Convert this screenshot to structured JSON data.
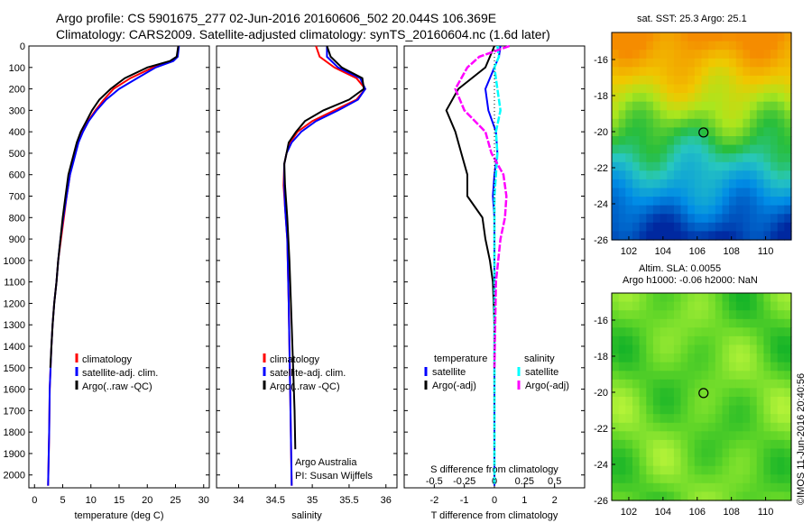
{
  "header": {
    "line1": "Argo profile: CS 5901675_277 02-Jun-2016 20160606_502 20.044S 106.369E",
    "line2": "Climatology: CARS2009. Satellite-adjusted climatology: synTS_20160604.nc (1.6d later)"
  },
  "colors": {
    "climatology": "#ff0000",
    "satellite": "#0000ff",
    "argo": "#000000",
    "satellite_s": "#00ffff",
    "argo_s": "#ff00ff"
  },
  "chart_data": [
    {
      "type": "line",
      "name": "temperature-profile",
      "xlabel": "temperature (deg C)",
      "xlim": [
        -1,
        31
      ],
      "ylim": [
        0,
        2060
      ],
      "xticks": [
        "0",
        "5",
        "10",
        "15",
        "20",
        "25",
        "30"
      ],
      "yticks": [
        "0",
        "100",
        "200",
        "300",
        "400",
        "500",
        "600",
        "700",
        "800",
        "900",
        "1000",
        "1100",
        "1200",
        "1300",
        "1400",
        "1500",
        "1600",
        "1700",
        "1800",
        "1900",
        "2000"
      ],
      "legend": [
        "climatology",
        "satellite-adj. clim.",
        "Argo(..raw -QC)"
      ],
      "series": [
        {
          "name": "climatology",
          "x": [
            25.5,
            25.3,
            24.5,
            21,
            17,
            14,
            12.3,
            10.8,
            9.5,
            8.5,
            7.7,
            7.2,
            6.7,
            6.3,
            5.7,
            5.2,
            4.7,
            4.2,
            3.9,
            3.5,
            3.2,
            3.0,
            2.7,
            2.6,
            2.4
          ],
          "y": [
            0,
            50,
            70,
            100,
            150,
            200,
            250,
            300,
            350,
            400,
            450,
            500,
            550,
            600,
            700,
            800,
            900,
            1000,
            1100,
            1200,
            1300,
            1400,
            1600,
            1800,
            2050
          ]
        },
        {
          "name": "satellite-adj. clim.",
          "x": [
            25.6,
            25.4,
            24.6,
            21.5,
            18.2,
            15,
            12.7,
            11,
            9.6,
            8.6,
            7.8,
            7.3,
            6.8,
            6.3,
            5.7,
            5.1,
            4.6,
            4.2,
            3.9,
            3.5,
            3.2,
            3.0,
            2.7,
            2.6,
            2.4
          ],
          "y": [
            0,
            50,
            70,
            100,
            150,
            200,
            250,
            300,
            350,
            400,
            450,
            500,
            550,
            600,
            700,
            800,
            900,
            1000,
            1100,
            1200,
            1300,
            1400,
            1600,
            1800,
            2050
          ]
        },
        {
          "name": "Argo(..raw -QC)",
          "x": [
            25.5,
            25.2,
            24,
            20,
            16,
            13.5,
            11.5,
            10.2,
            9.2,
            8.2,
            7.5,
            7.0,
            6.5,
            6.0,
            5.5,
            5.0,
            4.6,
            4.2,
            3.9,
            3.5,
            3.2,
            3.0,
            2.8
          ],
          "y": [
            0,
            50,
            70,
            100,
            150,
            200,
            250,
            300,
            350,
            400,
            450,
            500,
            550,
            600,
            700,
            800,
            900,
            1000,
            1100,
            1200,
            1300,
            1400,
            1500
          ]
        }
      ]
    },
    {
      "type": "line",
      "name": "salinity-profile",
      "xlabel": "salinity",
      "xlim": [
        33.7,
        36.15
      ],
      "ylim": [
        0,
        2060
      ],
      "xticks": [
        "34",
        "34.5",
        "35",
        "35.5",
        "36"
      ],
      "legend": [
        "climatology",
        "satellite-adj. clim.",
        "Argo(..raw -QC)"
      ],
      "annotation": [
        "Argo Australia",
        "PI: Susan Wijffels"
      ],
      "series": [
        {
          "name": "climatology",
          "x": [
            35.05,
            35.1,
            35.3,
            35.6,
            35.72,
            35.6,
            35.3,
            35.0,
            34.8,
            34.7,
            34.65,
            34.62,
            34.61,
            34.63,
            34.66,
            34.68,
            34.7,
            34.72
          ],
          "y": [
            0,
            50,
            100,
            150,
            200,
            250,
            300,
            350,
            400,
            450,
            500,
            550,
            650,
            750,
            900,
            1200,
            1600,
            2050
          ]
        },
        {
          "name": "satellite-adj. clim.",
          "x": [
            35.2,
            35.2,
            35.35,
            35.65,
            35.72,
            35.62,
            35.35,
            35.05,
            34.85,
            34.72,
            34.65,
            34.62,
            34.62,
            34.63,
            34.66,
            34.68,
            34.7,
            34.72
          ],
          "y": [
            0,
            50,
            100,
            150,
            200,
            250,
            300,
            350,
            400,
            450,
            500,
            550,
            650,
            750,
            900,
            1200,
            1600,
            2050
          ]
        },
        {
          "name": "Argo(..raw -QC)",
          "x": [
            35.2,
            35.25,
            35.4,
            35.68,
            35.7,
            35.5,
            35.15,
            34.9,
            34.78,
            34.68,
            34.65,
            34.62,
            34.63,
            34.66,
            34.69,
            34.72,
            34.76,
            34.77
          ],
          "y": [
            0,
            50,
            100,
            150,
            200,
            250,
            300,
            350,
            400,
            450,
            500,
            550,
            650,
            800,
            1000,
            1300,
            1700,
            1880
          ]
        }
      ]
    },
    {
      "type": "line",
      "name": "difference-profile",
      "xlabel": "T difference from climatology",
      "xlabel2": "S difference from climatology",
      "xlim": [
        -3,
        3
      ],
      "ylim": [
        0,
        2060
      ],
      "xticks": [
        "-2",
        "-1",
        "0",
        "1",
        "2"
      ],
      "xticks2": [
        "-0.5",
        "-0.25",
        "0",
        "0.25",
        "0.5"
      ],
      "legend_titles": [
        "temperature",
        "salinity"
      ],
      "legend": [
        "satellite",
        "Argo(-adj)",
        "satellite",
        "Argo(-adj)"
      ],
      "series": [
        {
          "name": "T satellite",
          "x": [
            0.2,
            0.15,
            0,
            -0.3,
            -0.2,
            0.05,
            0.1,
            0.0,
            -0.05,
            0.0,
            0,
            0,
            0
          ],
          "y": [
            0,
            50,
            100,
            200,
            300,
            400,
            500,
            600,
            700,
            800,
            1000,
            1500,
            2050
          ]
        },
        {
          "name": "T Argo(-adj)",
          "x": [
            0,
            -0.3,
            -1.2,
            -1.6,
            -1.3,
            -1.1,
            -0.9,
            -0.9,
            -0.4,
            -0.3,
            -0.15,
            -0.05,
            0,
            0
          ],
          "y": [
            0,
            100,
            200,
            300,
            400,
            500,
            600,
            700,
            800,
            900,
            1000,
            1100,
            1300,
            1500
          ]
        },
        {
          "name": "S satellite",
          "x": [
            0.1,
            0.15,
            0,
            0.1,
            0.2,
            0.05,
            0.1,
            0.05,
            0,
            0,
            0,
            0
          ],
          "y": [
            0,
            50,
            100,
            200,
            300,
            400,
            500,
            600,
            700,
            1000,
            1500,
            2050
          ]
        },
        {
          "name": "S Argo(-adj)",
          "x": [
            0.5,
            -0.5,
            -0.9,
            -1.3,
            -1.0,
            -0.3,
            -0.1,
            0.3,
            0.4,
            0.35,
            0.2,
            0.05,
            0
          ],
          "y": [
            0,
            50,
            100,
            200,
            300,
            400,
            500,
            600,
            700,
            800,
            900,
            1100,
            1500
          ]
        }
      ]
    },
    {
      "type": "heatmap",
      "name": "sst-map",
      "title": "sat. SST: 25.3  Argo: 25.1",
      "xlim": [
        101,
        111.5
      ],
      "ylim": [
        -26,
        -14.5
      ],
      "xticks": [
        "102",
        "104",
        "106",
        "108",
        "110"
      ],
      "yticks": [
        "-16",
        "-18",
        "-20",
        "-22",
        "-24",
        "-26"
      ],
      "marker": {
        "lon": 106.369,
        "lat": -20.044
      }
    },
    {
      "type": "heatmap",
      "name": "sla-map",
      "title": [
        "Altim. SLA: 0.0055",
        "Argo h1000: -0.06 h2000: NaN"
      ],
      "xlim": [
        101,
        111.5
      ],
      "ylim": [
        -26,
        -14.5
      ],
      "xticks": [
        "102",
        "104",
        "106",
        "108",
        "110"
      ],
      "yticks": [
        "-16",
        "-18",
        "-20",
        "-22",
        "-24",
        "-26"
      ],
      "marker": {
        "lon": 106.369,
        "lat": -20.044
      }
    }
  ],
  "stamp": "©IMOS 11-Jun-2016 20:40:56"
}
